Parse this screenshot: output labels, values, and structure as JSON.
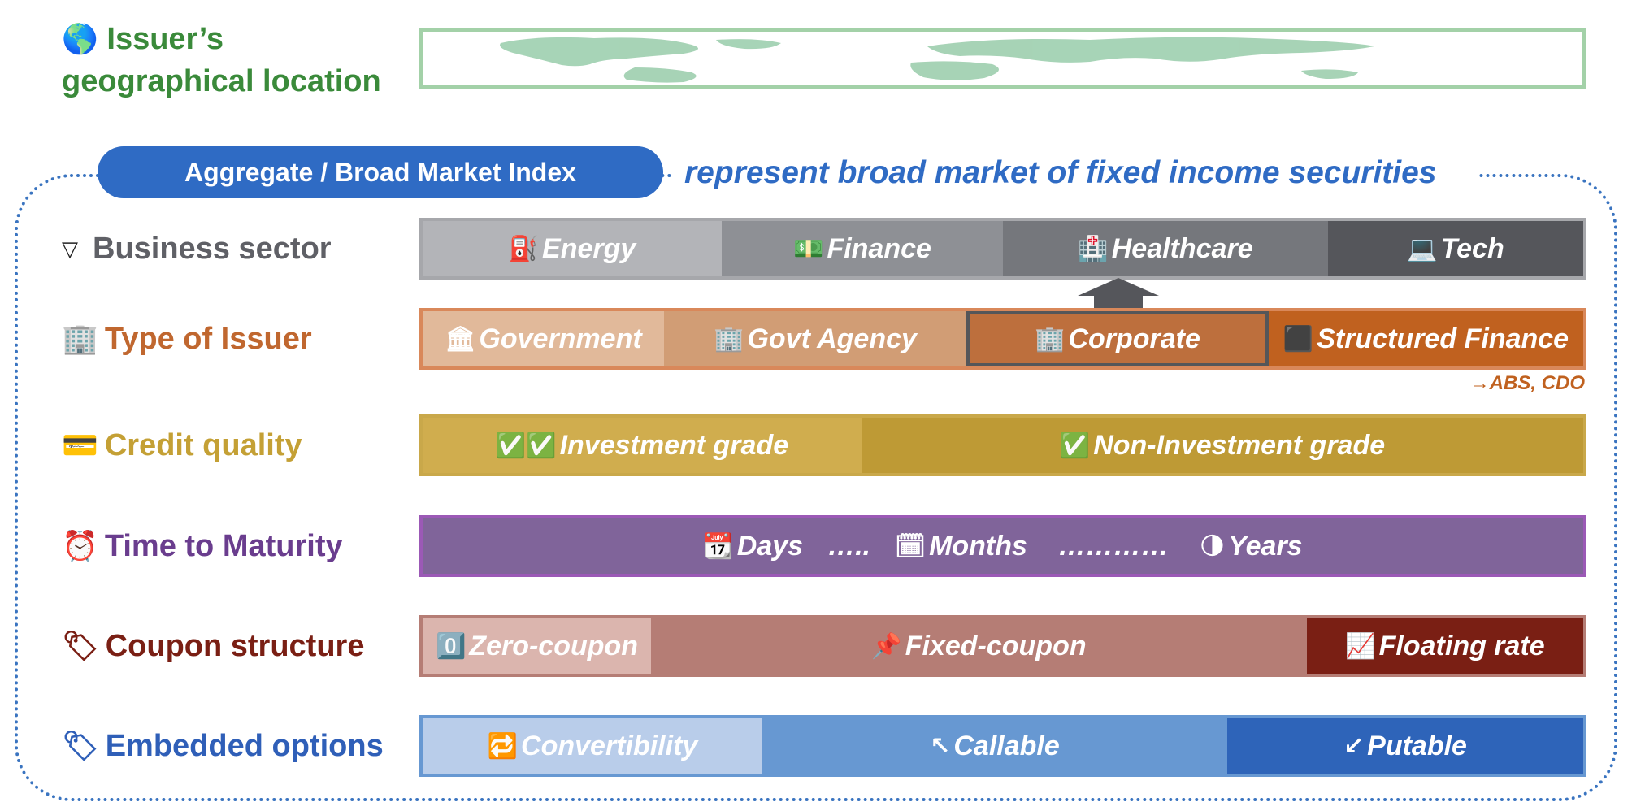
{
  "geo": {
    "icon": "globe-icon",
    "line1": "Issuer’s",
    "line2": "geographical location"
  },
  "index": {
    "pill_label": "Aggregate / Broad Market Index",
    "caption": "represent broad market of fixed income securities"
  },
  "rows": {
    "sector": {
      "icon": "triangle-down-icon",
      "label": "Business sector",
      "color": "#5f6066",
      "segments": [
        {
          "icon": "fuel-pump-icon",
          "label": "Energy",
          "color": "#b3b4b8"
        },
        {
          "icon": "money-icon",
          "label": "Finance",
          "color": "#8e9095"
        },
        {
          "icon": "hospital-icon",
          "label": "Healthcare",
          "color": "#75777c"
        },
        {
          "icon": "laptop-icon",
          "label": "Tech",
          "color": "#55565b"
        }
      ]
    },
    "issuer": {
      "icon": "office-building-icon",
      "label": "Type of Issuer",
      "color": "#c0672f",
      "segments": [
        {
          "icon": "classical-building-icon",
          "label": "Government",
          "color": "#e1b99a"
        },
        {
          "icon": "office-icon",
          "label": "Govt Agency",
          "color": "#d19d75"
        },
        {
          "icon": "office-building-icon",
          "label": "Corporate",
          "color": "#bd6f3d"
        },
        {
          "icon": "black-box-icon",
          "label": "Structured Finance",
          "color": "#c0611f"
        }
      ],
      "note": "→ABS, CDO"
    },
    "credit": {
      "icon": "credit-card-icon",
      "label": "Credit quality",
      "color": "#c4a035",
      "segments": [
        {
          "icon": "double-check-icon",
          "label": "Investment grade",
          "color": "#d0ad4e"
        },
        {
          "icon": "check-icon",
          "label": "Non-Investment grade",
          "color": "#be9a35"
        }
      ]
    },
    "maturity": {
      "icon": "alarm-clock-icon",
      "label": "Time to Maturity",
      "color": "#6a3d8e",
      "bar_color": "#80649a",
      "items": [
        {
          "icon": "calendar-icon",
          "label": "Days"
        },
        {
          "sep": "….."
        },
        {
          "icon": "notepad-icon",
          "label": "Months"
        },
        {
          "sep": "…………"
        },
        {
          "icon": "moon-icon",
          "label": "Years"
        }
      ]
    },
    "coupon": {
      "icon": "tag-icon",
      "label": "Coupon structure",
      "color": "#7a1f14",
      "segments": [
        {
          "icon": "zero-icon",
          "label": "Zero-coupon",
          "color": "#dbb5ae"
        },
        {
          "icon": "pushpin-icon",
          "label": "Fixed-coupon",
          "color": "#b57d75"
        },
        {
          "icon": "chart-increasing-icon",
          "label": "Floating rate",
          "color": "#7a1f14"
        }
      ]
    },
    "options": {
      "icon": "tag-icon",
      "label": "Embedded options",
      "color": "#2f5fb8",
      "segments": [
        {
          "icon": "repeat-icon",
          "label": "Convertibility",
          "color": "#b9cdea"
        },
        {
          "icon": "arrow-up-left-icon",
          "label": "Callable",
          "color": "#6798d2"
        },
        {
          "icon": "arrow-down-left-icon",
          "label": "Putable",
          "color": "#2e64b9"
        }
      ]
    }
  },
  "colors": {
    "geo_green": "#3a8a3a",
    "index_blue": "#2f6bc4",
    "dotted_border": "#3a74c0"
  }
}
